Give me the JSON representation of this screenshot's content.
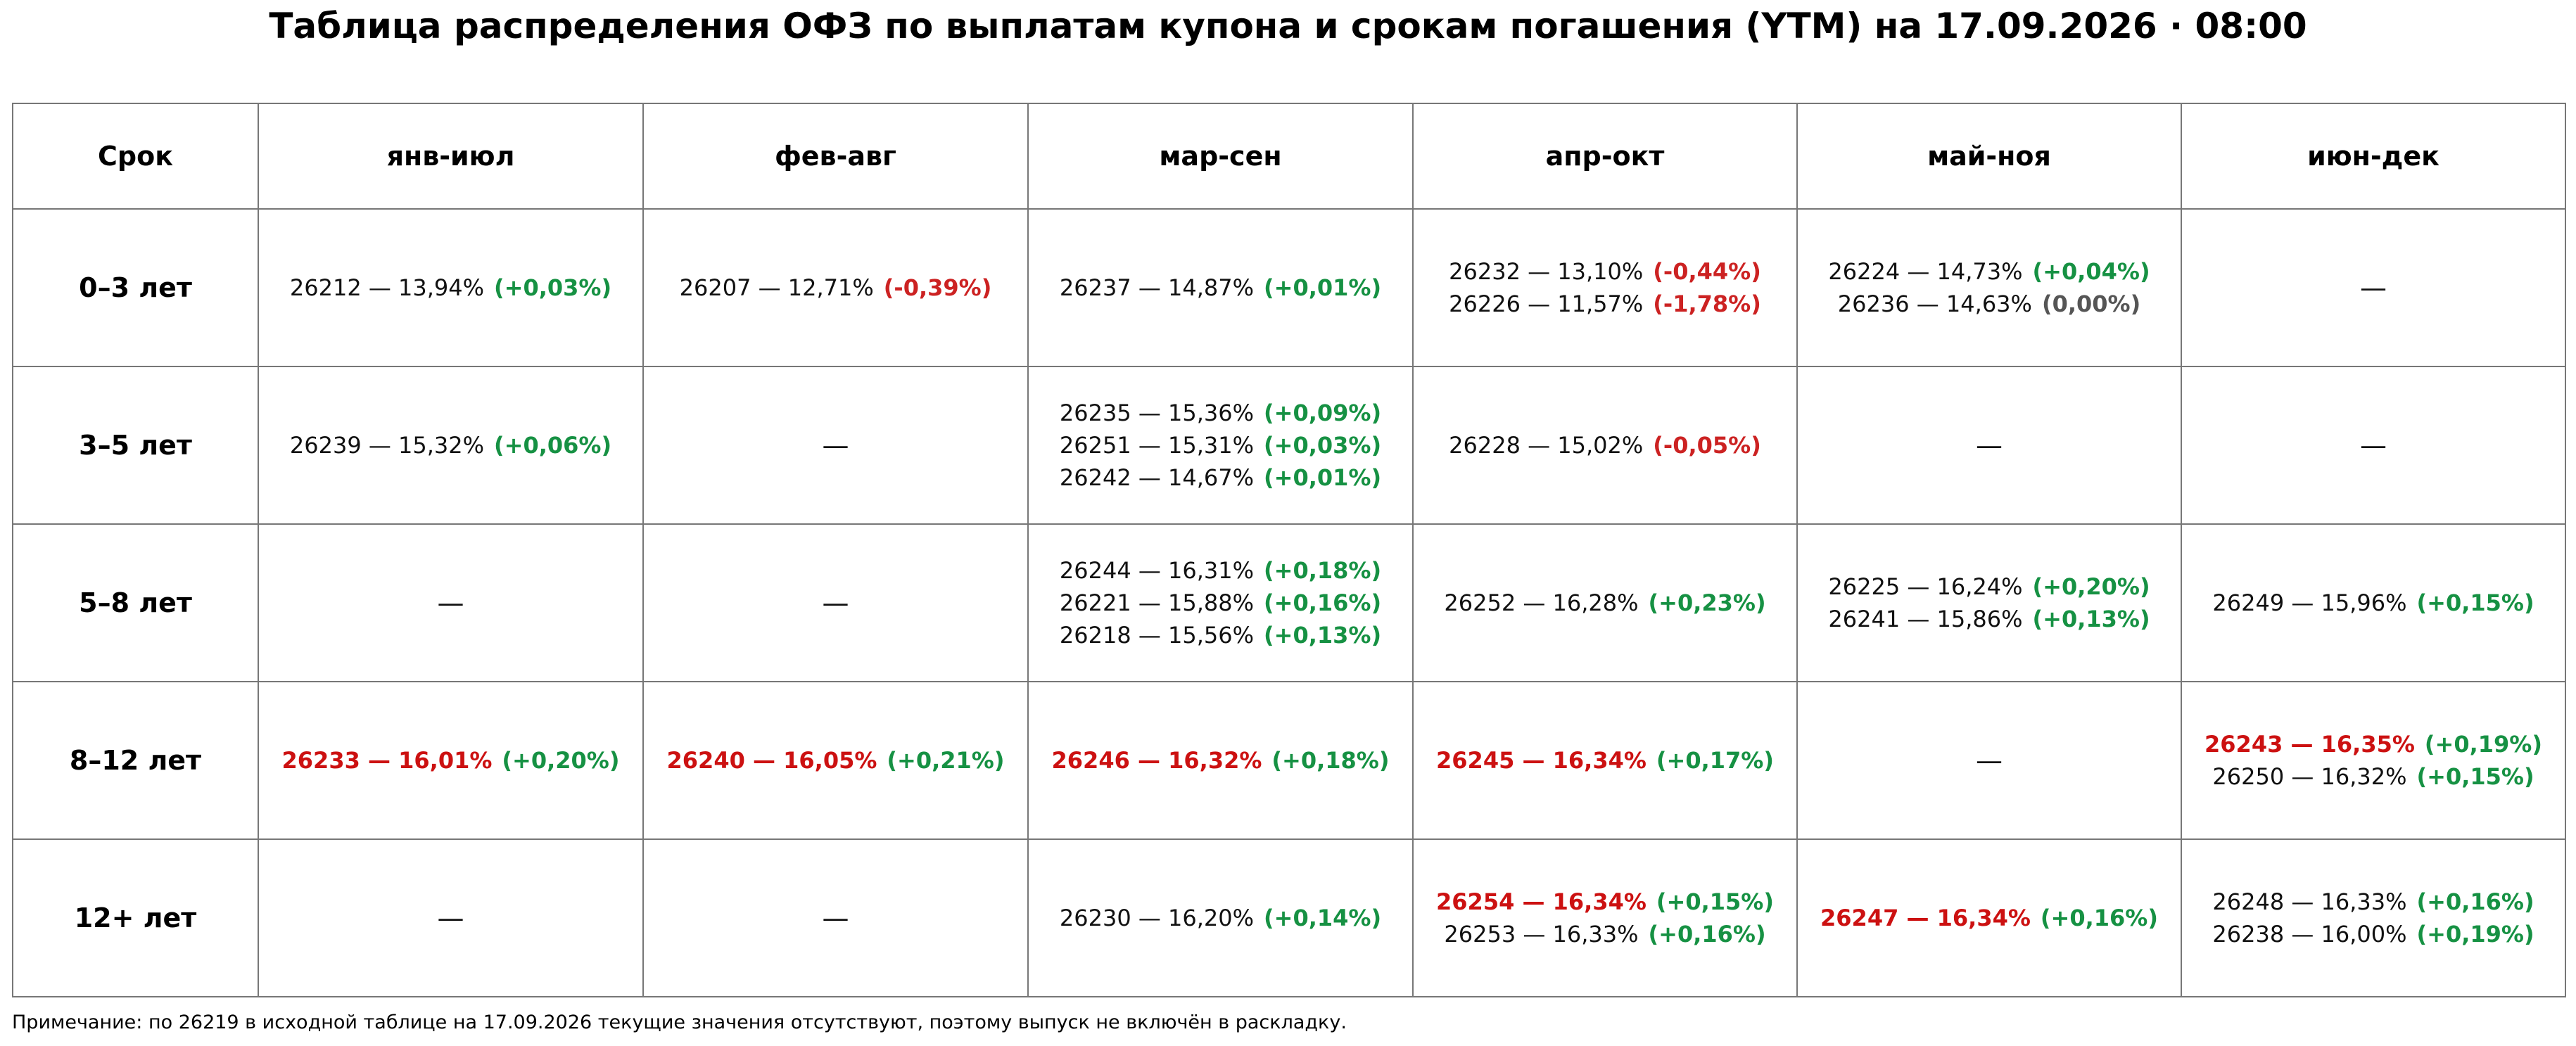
{
  "title": "Таблица распределения ОФЗ по выплатам купона и срокам погашения (YTM) на 17.09.2026 · 08:00",
  "table": {
    "header": [
      "Срок",
      "янв-июл",
      "фев-авг",
      "мар-сен",
      "апр-окт",
      "май-ноя",
      "июн-дек"
    ],
    "empty_mark": "—",
    "rows": [
      {
        "term": "0–3 лет",
        "cells": [
          [
            {
              "bond": "26212 — 13,94%",
              "change": "(+0,03%)",
              "sign": "pos",
              "highlight": false
            }
          ],
          [
            {
              "bond": "26207 — 12,71%",
              "change": "(-0,39%)",
              "sign": "neg",
              "highlight": false
            }
          ],
          [
            {
              "bond": "26237 — 14,87%",
              "change": "(+0,01%)",
              "sign": "pos",
              "highlight": false
            }
          ],
          [
            {
              "bond": "26232 — 13,10%",
              "change": "(-0,44%)",
              "sign": "neg",
              "highlight": false
            },
            {
              "bond": "26226 — 11,57%",
              "change": "(-1,78%)",
              "sign": "neg",
              "highlight": false
            }
          ],
          [
            {
              "bond": "26224 — 14,73%",
              "change": "(+0,04%)",
              "sign": "pos",
              "highlight": false
            },
            {
              "bond": "26236 — 14,63%",
              "change": "(0,00%)",
              "sign": "zero",
              "highlight": false
            }
          ],
          []
        ]
      },
      {
        "term": "3–5 лет",
        "cells": [
          [
            {
              "bond": "26239 — 15,32%",
              "change": "(+0,06%)",
              "sign": "pos",
              "highlight": false
            }
          ],
          [],
          [
            {
              "bond": "26235 — 15,36%",
              "change": "(+0,09%)",
              "sign": "pos",
              "highlight": false
            },
            {
              "bond": "26251 — 15,31%",
              "change": "(+0,03%)",
              "sign": "pos",
              "highlight": false
            },
            {
              "bond": "26242 — 14,67%",
              "change": "(+0,01%)",
              "sign": "pos",
              "highlight": false
            }
          ],
          [
            {
              "bond": "26228 — 15,02%",
              "change": "(-0,05%)",
              "sign": "neg",
              "highlight": false
            }
          ],
          [],
          []
        ]
      },
      {
        "term": "5–8 лет",
        "cells": [
          [],
          [],
          [
            {
              "bond": "26244 — 16,31%",
              "change": "(+0,18%)",
              "sign": "pos",
              "highlight": false
            },
            {
              "bond": "26221 — 15,88%",
              "change": "(+0,16%)",
              "sign": "pos",
              "highlight": false
            },
            {
              "bond": "26218 — 15,56%",
              "change": "(+0,13%)",
              "sign": "pos",
              "highlight": false
            }
          ],
          [
            {
              "bond": "26252 — 16,28%",
              "change": "(+0,23%)",
              "sign": "pos",
              "highlight": false
            }
          ],
          [
            {
              "bond": "26225 — 16,24%",
              "change": "(+0,20%)",
              "sign": "pos",
              "highlight": false
            },
            {
              "bond": "26241 — 15,86%",
              "change": "(+0,13%)",
              "sign": "pos",
              "highlight": false
            }
          ],
          [
            {
              "bond": "26249 — 15,96%",
              "change": "(+0,15%)",
              "sign": "pos",
              "highlight": false
            }
          ]
        ]
      },
      {
        "term": "8–12 лет",
        "cells": [
          [
            {
              "bond": "26233 — 16,01%",
              "change": "(+0,20%)",
              "sign": "pos",
              "highlight": true
            }
          ],
          [
            {
              "bond": "26240 — 16,05%",
              "change": "(+0,21%)",
              "sign": "pos",
              "highlight": true
            }
          ],
          [
            {
              "bond": "26246 — 16,32%",
              "change": "(+0,18%)",
              "sign": "pos",
              "highlight": true
            }
          ],
          [
            {
              "bond": "26245 — 16,34%",
              "change": "(+0,17%)",
              "sign": "pos",
              "highlight": true
            }
          ],
          [],
          [
            {
              "bond": "26243 — 16,35%",
              "change": "(+0,19%)",
              "sign": "pos",
              "highlight": true
            },
            {
              "bond": "26250 — 16,32%",
              "change": "(+0,15%)",
              "sign": "pos",
              "highlight": false
            }
          ]
        ]
      },
      {
        "term": "12+ лет",
        "cells": [
          [],
          [],
          [
            {
              "bond": "26230 — 16,20%",
              "change": "(+0,14%)",
              "sign": "pos",
              "highlight": false
            }
          ],
          [
            {
              "bond": "26254 — 16,34%",
              "change": "(+0,15%)",
              "sign": "pos",
              "highlight": true
            },
            {
              "bond": "26253 — 16,33%",
              "change": "(+0,16%)",
              "sign": "pos",
              "highlight": false
            }
          ],
          [
            {
              "bond": "26247 — 16,34%",
              "change": "(+0,16%)",
              "sign": "pos",
              "highlight": true
            }
          ],
          [
            {
              "bond": "26248 — 16,33%",
              "change": "(+0,16%)",
              "sign": "pos",
              "highlight": false
            },
            {
              "bond": "26238 — 16,00%",
              "change": "(+0,19%)",
              "sign": "pos",
              "highlight": false
            }
          ]
        ]
      }
    ]
  },
  "colors": {
    "highlight_bond": "#cc1111",
    "positive_change": "#169143",
    "negative_change": "#cc2222",
    "zero_change": "#555555",
    "grid_line": "#777777"
  },
  "note": "Примечание: по 26219 в исходной таблице на 17.09.2026 текущие значения отсутствуют, поэтому выпуск не включён в раскладку."
}
